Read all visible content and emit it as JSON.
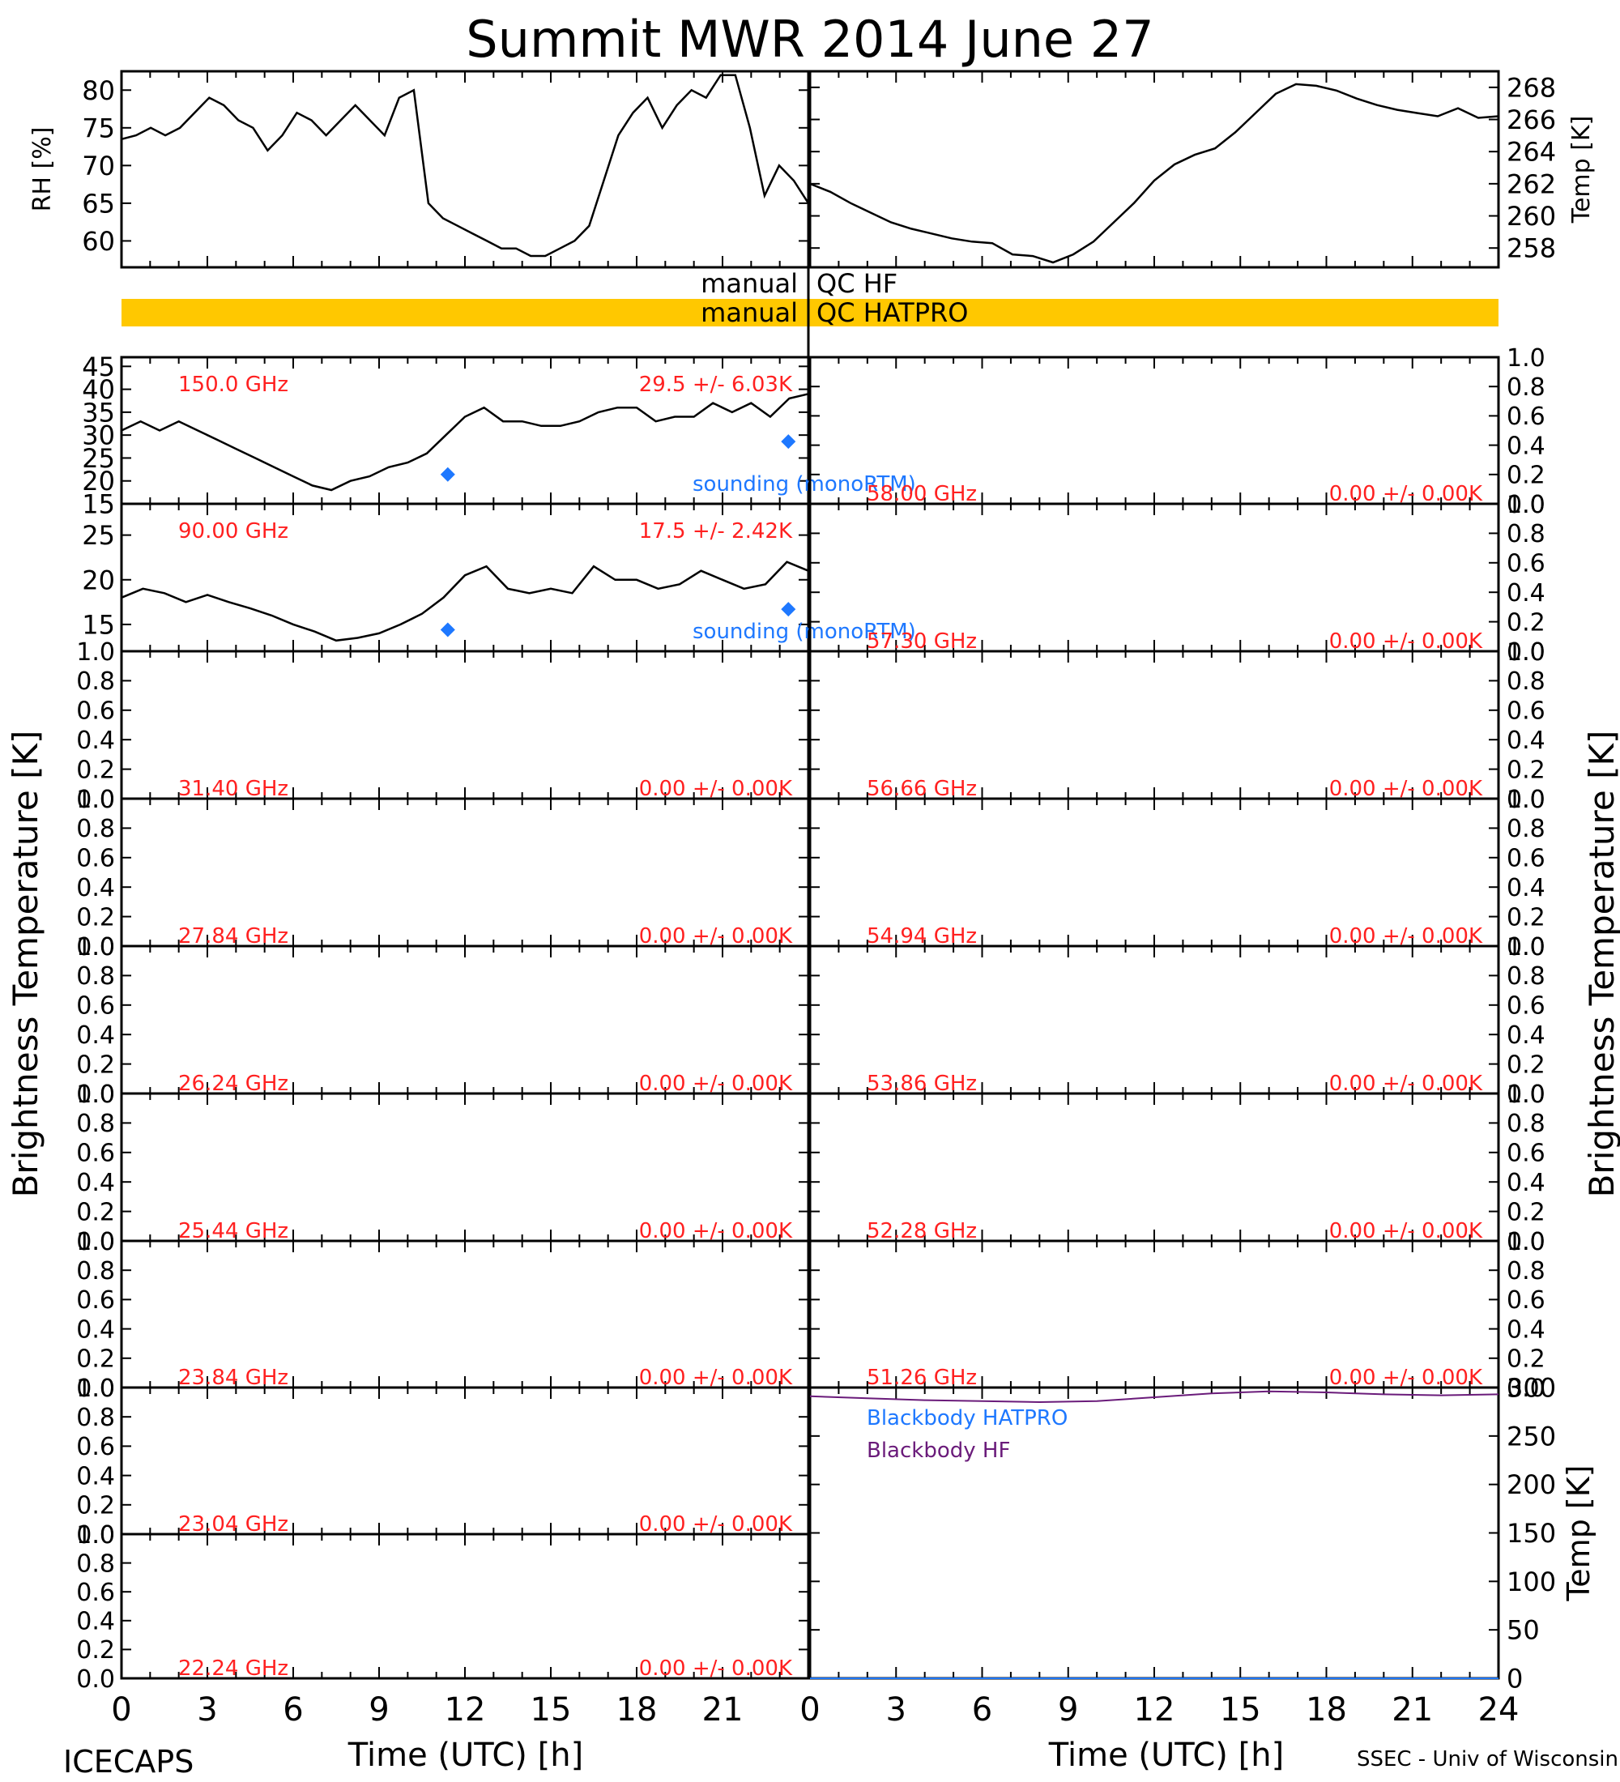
{
  "figure": {
    "title": "Summit MWR 2014 June 27",
    "left_axis_label": "Brightness Temperature [K]",
    "right_axis_label": "Brightness Temperature [K]",
    "x_label_left": "Time (UTC) [h]",
    "x_label_right": "Time (UTC) [h]",
    "footer_left": "ICECAPS",
    "footer_right": "SSEC - Univ of Wisconsin",
    "x_ticks": [
      "0",
      "3",
      "6",
      "9",
      "12",
      "15",
      "18",
      "21"
    ],
    "x_ticks_right": [
      "0",
      "3",
      "6",
      "9",
      "12",
      "15",
      "18",
      "21",
      "24"
    ],
    "qc_rows": [
      {
        "left": "manual",
        "right": "QC HF",
        "bar_color": ""
      },
      {
        "left": "manual",
        "right": "QC HATPRO",
        "bar_color": "#FFC800"
      }
    ],
    "colors": {
      "annotation": "#FF2020",
      "sounding": "#1E78FF",
      "blackbody_hatpro": "#1E78FF",
      "blackbody_hf": "#6A1B7A",
      "qc_bar": "#FFC800"
    }
  },
  "chart_data": [
    {
      "type": "line",
      "panel": "top-left",
      "ylabel": "RH [%]",
      "ylim": [
        56.5,
        82.5
      ],
      "yticks": [
        "60",
        "65",
        "70",
        "75",
        "80"
      ],
      "series": [
        {
          "values": [
            73.5,
            74,
            75,
            74,
            75,
            77,
            79,
            78,
            76,
            75,
            72,
            74,
            77,
            76,
            74,
            76,
            78,
            76,
            74,
            79,
            80,
            65,
            63,
            62,
            61,
            60,
            59,
            59,
            58,
            58,
            59,
            60,
            62,
            68,
            74,
            77,
            79,
            75,
            78,
            80,
            79,
            82,
            82,
            75,
            66,
            70,
            68,
            65
          ]
        }
      ]
    },
    {
      "type": "line",
      "panel": "top-right",
      "ylabel": "Temp [K]",
      "ylim": [
        256.8,
        269
      ],
      "yticks": [
        "258",
        "260",
        "262",
        "264",
        "266",
        "268"
      ],
      "series": [
        {
          "values": [
            262,
            261.5,
            260.8,
            260.2,
            259.6,
            259.2,
            258.9,
            258.6,
            258.4,
            258.3,
            257.6,
            257.5,
            257.1,
            257.6,
            258.4,
            259.6,
            260.8,
            262.2,
            263.2,
            263.8,
            264.2,
            265.2,
            266.4,
            267.6,
            268.2,
            268.1,
            267.8,
            267.3,
            266.9,
            266.6,
            266.4,
            266.2,
            266.7,
            266.1,
            266.2
          ]
        }
      ]
    },
    {
      "type": "line",
      "panel": "left-1",
      "channel": "150.0 GHz",
      "stats": "29.5 +/- 6.03K",
      "ylim": [
        15,
        47
      ],
      "yticks": [
        "15",
        "20",
        "25",
        "30",
        "35",
        "40",
        "45"
      ],
      "series": [
        {
          "values": [
            31,
            33,
            31,
            33,
            31,
            29,
            27,
            25,
            23,
            21,
            19,
            18,
            20,
            21,
            23,
            24,
            26,
            30,
            34,
            36,
            33,
            33,
            32,
            32,
            33,
            35,
            36,
            36,
            33,
            34,
            34,
            37,
            35,
            37,
            34,
            38,
            39
          ]
        },
        {
          "name": "sounding (monoRTM)",
          "points": [
            [
              11.4,
              21.4
            ],
            [
              23.3,
              28.6
            ]
          ]
        }
      ]
    },
    {
      "type": "line",
      "panel": "left-2",
      "channel": "90.00 GHz",
      "stats": "17.5 +/- 2.42K",
      "ylim": [
        12,
        28.5
      ],
      "yticks": [
        "15",
        "20",
        "25"
      ],
      "series": [
        {
          "values": [
            18,
            19,
            18.5,
            17.5,
            18.3,
            17.5,
            16.8,
            16,
            15,
            14.2,
            13.2,
            13.5,
            14,
            15,
            16.2,
            18,
            20.5,
            21.5,
            19,
            18.5,
            19,
            18.5,
            21.5,
            20,
            20,
            19,
            19.5,
            21,
            20,
            19,
            19.5,
            22,
            21
          ]
        },
        {
          "name": "sounding (monoRTM)",
          "points": [
            [
              11.4,
              14.4
            ],
            [
              23.3,
              16.7
            ]
          ]
        }
      ]
    },
    {
      "type": "line",
      "panel": "left-3",
      "channel": "31.40 GHz",
      "stats": "0.00 +/- 0.00K",
      "ylim": [
        0,
        1
      ]
    },
    {
      "type": "line",
      "panel": "left-4",
      "channel": "27.84 GHz",
      "stats": "0.00 +/- 0.00K",
      "ylim": [
        0,
        1
      ]
    },
    {
      "type": "line",
      "panel": "left-5",
      "channel": "26.24 GHz",
      "stats": "0.00 +/- 0.00K",
      "ylim": [
        0,
        1
      ]
    },
    {
      "type": "line",
      "panel": "left-6",
      "channel": "25.44 GHz",
      "stats": "0.00 +/- 0.00K",
      "ylim": [
        0,
        1
      ]
    },
    {
      "type": "line",
      "panel": "left-7",
      "channel": "23.84 GHz",
      "stats": "0.00 +/- 0.00K",
      "ylim": [
        0,
        1
      ]
    },
    {
      "type": "line",
      "panel": "left-8",
      "channel": "23.04 GHz",
      "stats": "0.00 +/- 0.00K",
      "ylim": [
        0,
        1
      ]
    },
    {
      "type": "line",
      "panel": "left-9",
      "channel": "22.24 GHz",
      "stats": "0.00 +/- 0.00K",
      "ylim": [
        0,
        1
      ]
    },
    {
      "type": "line",
      "panel": "right-1",
      "channel": "58.00 GHz",
      "stats": "0.00 +/- 0.00K",
      "ylim": [
        0,
        1
      ]
    },
    {
      "type": "line",
      "panel": "right-2",
      "channel": "57.30 GHz",
      "stats": "0.00 +/- 0.00K",
      "ylim": [
        0,
        1
      ]
    },
    {
      "type": "line",
      "panel": "right-3",
      "channel": "56.66 GHz",
      "stats": "0.00 +/- 0.00K",
      "ylim": [
        0,
        1
      ]
    },
    {
      "type": "line",
      "panel": "right-4",
      "channel": "54.94 GHz",
      "stats": "0.00 +/- 0.00K",
      "ylim": [
        0,
        1
      ]
    },
    {
      "type": "line",
      "panel": "right-5",
      "channel": "53.86 GHz",
      "stats": "0.00 +/- 0.00K",
      "ylim": [
        0,
        1
      ]
    },
    {
      "type": "line",
      "panel": "right-6",
      "channel": "52.28 GHz",
      "stats": "0.00 +/- 0.00K",
      "ylim": [
        0,
        1
      ]
    },
    {
      "type": "line",
      "panel": "right-7",
      "channel": "51.26 GHz",
      "stats": "0.00 +/- 0.00K",
      "ylim": [
        0,
        1
      ]
    },
    {
      "type": "line",
      "panel": "right-bottom",
      "ylabel": "Temp [K]",
      "ylim": [
        0,
        300
      ],
      "yticks": [
        "0",
        "50",
        "100",
        "150",
        "200",
        "250",
        "300"
      ],
      "series": [
        {
          "name": "Blackbody HATPRO",
          "values": [
            0,
            0
          ]
        },
        {
          "name": "Blackbody HF",
          "values": [
            291,
            289,
            287,
            286,
            285,
            286,
            290,
            294,
            296,
            295,
            293,
            292,
            293
          ]
        }
      ]
    }
  ]
}
